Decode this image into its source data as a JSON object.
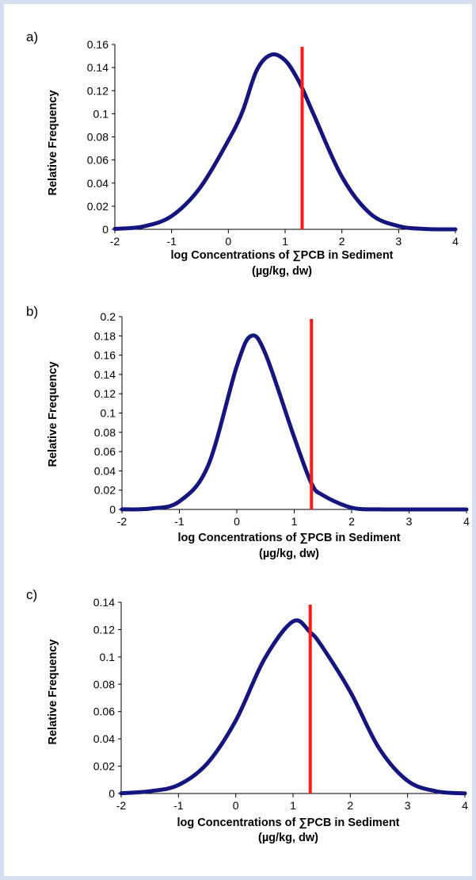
{
  "colors": {
    "background": "#d6dff0",
    "panel": "#ffffff",
    "curve": "#15157f",
    "threshold": "#ff1a1a"
  },
  "chart_data": [
    {
      "panel_label": "a)",
      "type": "line",
      "xlabel": "log Concentrations of ∑PCB in Sediment",
      "xlabel_units": "(µg/kg, dw)",
      "ylabel": "Relative Frequency",
      "xlim": [
        -2,
        4
      ],
      "ylim": [
        0,
        0.16
      ],
      "x_ticks": [
        "-2",
        "-1",
        "0",
        "1",
        "2",
        "3",
        "4"
      ],
      "y_ticks": [
        "0",
        "0.02",
        "0.04",
        "0.06",
        "0.08",
        "0.1",
        "0.12",
        "0.14",
        "0.16"
      ],
      "grid": false,
      "series": [
        {
          "x": [
            -2,
            -1.5,
            -1,
            -0.5,
            0,
            0.25,
            0.5,
            0.75,
            1,
            1.25,
            1.5,
            2,
            2.5,
            3,
            3.5,
            4
          ],
          "y": [
            0.0004,
            0.0025,
            0.0115,
            0.0359,
            0.0769,
            0.1022,
            0.1377,
            0.151,
            0.1462,
            0.1273,
            0.0998,
            0.0455,
            0.0136,
            0.0028,
            0.0003,
            0
          ]
        }
      ],
      "vline_x": 1.3
    },
    {
      "panel_label": "b)",
      "type": "line",
      "xlabel": "log Concentrations of ∑PCB in Sediment",
      "xlabel_units": "(µg/kg, dw)",
      "ylabel": "Relative Frequency",
      "xlim": [
        -2,
        4
      ],
      "ylim": [
        0,
        0.2
      ],
      "x_ticks": [
        "-2",
        "-1",
        "0",
        "1",
        "2",
        "3",
        "4"
      ],
      "y_ticks": [
        "0",
        "0.02",
        "0.04",
        "0.06",
        "0.08",
        "0.1",
        "0.12",
        "0.14",
        "0.16",
        "0.18",
        "0.2"
      ],
      "grid": false,
      "series": [
        {
          "x": [
            -2,
            -1.5,
            -1,
            -0.5,
            0,
            0.25,
            0.5,
            1,
            1.3,
            1.5,
            2,
            2.5,
            3,
            3.5,
            4
          ],
          "y": [
            0.0001,
            0.0009,
            0.0083,
            0.0455,
            0.1487,
            0.18,
            0.1612,
            0.0748,
            0.027,
            0.0147,
            0.0018,
            0.0001,
            0,
            0,
            0
          ]
        }
      ],
      "vline_x": 1.3
    },
    {
      "panel_label": "c)",
      "type": "line",
      "xlabel": "log Concentrations of ∑PCB in Sediment",
      "xlabel_units": "(µg/kg, dw)",
      "ylabel": "Relative Frequency",
      "xlim": [
        -2,
        4
      ],
      "ylim": [
        0,
        0.14
      ],
      "x_ticks": [
        "-2",
        "-1",
        "0",
        "1",
        "2",
        "3",
        "4"
      ],
      "y_ticks": [
        "0",
        "0.02",
        "0.04",
        "0.06",
        "0.08",
        "0.1",
        "0.12",
        "0.14"
      ],
      "grid": false,
      "series": [
        {
          "x": [
            -2,
            -1.5,
            -1,
            -0.5,
            0,
            0.5,
            1,
            1.3,
            1.5,
            2,
            2.5,
            3,
            3.5,
            4
          ],
          "y": [
            0.0002,
            0.0017,
            0.0062,
            0.0219,
            0.0534,
            0.0984,
            0.126,
            0.118,
            0.108,
            0.0745,
            0.0333,
            0.0093,
            0.0016,
            0.0001
          ]
        }
      ],
      "vline_x": 1.3
    }
  ]
}
